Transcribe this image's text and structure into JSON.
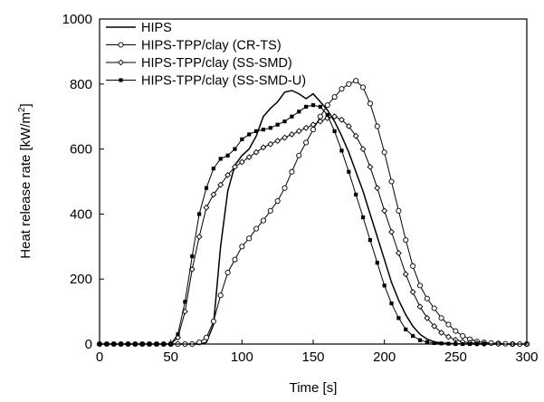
{
  "chart_data": {
    "type": "line",
    "title": "",
    "xlabel": "Time [s]",
    "ylabel_main": "Heat release rate [kW/m",
    "ylabel_sup": "2",
    "ylabel_end": "]",
    "xlim": [
      0,
      300
    ],
    "ylim": [
      0,
      1000
    ],
    "xticks": [
      0,
      50,
      100,
      150,
      200,
      250,
      300
    ],
    "yticks": [
      0,
      200,
      400,
      600,
      800,
      1000
    ],
    "grid": false,
    "legend_position": "top-left",
    "series": [
      {
        "name": "HIPS",
        "marker": "none",
        "color": "#000000",
        "x": [
          0,
          50,
          60,
          70,
          75,
          80,
          85,
          90,
          95,
          100,
          105,
          110,
          115,
          120,
          125,
          130,
          135,
          140,
          145,
          150,
          155,
          160,
          165,
          170,
          175,
          180,
          185,
          190,
          195,
          200,
          205,
          210,
          215,
          220,
          225,
          230,
          235,
          240,
          250,
          260,
          270,
          280,
          290,
          300
        ],
        "y": [
          0,
          0,
          0,
          0,
          5,
          60,
          300,
          470,
          550,
          580,
          600,
          640,
          700,
          725,
          745,
          775,
          780,
          770,
          755,
          770,
          745,
          720,
          685,
          640,
          590,
          530,
          470,
          400,
          330,
          260,
          190,
          135,
          90,
          55,
          30,
          15,
          7,
          3,
          1,
          0,
          0,
          0,
          0,
          0
        ]
      },
      {
        "name": "HIPS-TPP/clay (CR-TS)",
        "marker": "open-circle",
        "color": "#000000",
        "x": [
          0,
          5,
          10,
          15,
          20,
          25,
          30,
          35,
          40,
          45,
          50,
          55,
          60,
          65,
          70,
          75,
          80,
          85,
          90,
          95,
          100,
          105,
          110,
          115,
          120,
          125,
          130,
          135,
          140,
          145,
          150,
          155,
          160,
          165,
          170,
          175,
          180,
          185,
          190,
          195,
          200,
          205,
          210,
          215,
          220,
          225,
          230,
          235,
          240,
          245,
          250,
          255,
          260,
          265,
          270,
          275,
          280,
          285,
          290,
          295,
          300
        ],
        "y": [
          0,
          0,
          0,
          0,
          0,
          0,
          0,
          0,
          0,
          0,
          0,
          0,
          0,
          0,
          5,
          20,
          70,
          150,
          220,
          260,
          300,
          325,
          355,
          380,
          410,
          440,
          480,
          530,
          580,
          620,
          660,
          700,
          735,
          760,
          785,
          800,
          810,
          790,
          740,
          670,
          590,
          500,
          410,
          320,
          240,
          180,
          140,
          110,
          80,
          60,
          40,
          25,
          15,
          8,
          5,
          3,
          2,
          1,
          0,
          0,
          0
        ]
      },
      {
        "name": "HIPS-TPP/clay (SS-SMD)",
        "marker": "open-diamond",
        "color": "#000000",
        "x": [
          0,
          50,
          55,
          60,
          65,
          70,
          75,
          80,
          85,
          90,
          95,
          100,
          105,
          110,
          115,
          120,
          125,
          130,
          135,
          140,
          145,
          150,
          155,
          160,
          165,
          170,
          175,
          180,
          185,
          190,
          195,
          200,
          205,
          210,
          215,
          220,
          225,
          230,
          235,
          240,
          245,
          250,
          255,
          260,
          265,
          270,
          280,
          290,
          300
        ],
        "y": [
          0,
          0,
          20,
          100,
          230,
          330,
          420,
          460,
          490,
          520,
          545,
          560,
          575,
          590,
          605,
          615,
          625,
          635,
          645,
          655,
          665,
          675,
          685,
          695,
          700,
          690,
          670,
          640,
          600,
          545,
          480,
          410,
          345,
          280,
          215,
          160,
          115,
          80,
          55,
          35,
          22,
          13,
          7,
          4,
          2,
          1,
          0,
          0,
          0
        ]
      },
      {
        "name": "HIPS-TPP/clay (SS-SMD-U)",
        "marker": "filled-square",
        "color": "#000000",
        "x": [
          0,
          5,
          10,
          15,
          20,
          25,
          30,
          35,
          40,
          45,
          50,
          55,
          60,
          65,
          70,
          75,
          80,
          85,
          90,
          95,
          100,
          105,
          110,
          115,
          120,
          125,
          130,
          135,
          140,
          145,
          150,
          155,
          160,
          165,
          170,
          175,
          180,
          185,
          190,
          195,
          200,
          205,
          210,
          215,
          220,
          225,
          230,
          235,
          240,
          245,
          250,
          255,
          260,
          265,
          270
        ],
        "y": [
          0,
          0,
          0,
          0,
          0,
          0,
          0,
          0,
          0,
          0,
          0,
          30,
          130,
          270,
          400,
          480,
          540,
          570,
          580,
          600,
          630,
          645,
          655,
          660,
          665,
          675,
          685,
          700,
          715,
          730,
          735,
          730,
          705,
          655,
          595,
          530,
          460,
          390,
          320,
          250,
          180,
          125,
          80,
          45,
          25,
          12,
          6,
          3,
          2,
          1,
          0,
          0,
          0,
          0,
          0
        ]
      }
    ]
  }
}
